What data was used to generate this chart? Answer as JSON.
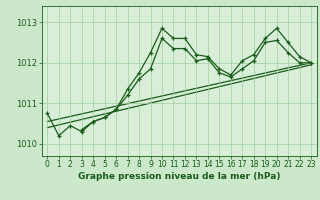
{
  "xlabel": "Graphe pression niveau de la mer (hPa)",
  "background_color": "#cbe8cb",
  "plot_bg_color": "#d8eed8",
  "grid_color": "#9ecf9e",
  "line_color": "#1a5c1a",
  "xlim": [
    -0.5,
    23.5
  ],
  "ylim": [
    1009.7,
    1013.4
  ],
  "xticks": [
    0,
    1,
    2,
    3,
    4,
    5,
    6,
    7,
    8,
    9,
    10,
    11,
    12,
    13,
    14,
    15,
    16,
    17,
    18,
    19,
    20,
    21,
    22,
    23
  ],
  "yticks": [
    1010,
    1011,
    1012,
    1013
  ],
  "series1_x": [
    0,
    1,
    2,
    3,
    4,
    5,
    6,
    7,
    8,
    9,
    10,
    11,
    12,
    13,
    14,
    15,
    16,
    17,
    18,
    19,
    20,
    21,
    22,
    23
  ],
  "series1_y": [
    1010.75,
    1010.2,
    1010.45,
    1010.3,
    1010.55,
    1010.65,
    1010.85,
    1011.35,
    1011.75,
    1012.25,
    1012.85,
    1012.6,
    1012.6,
    1012.2,
    1012.15,
    1011.85,
    1011.7,
    1012.05,
    1012.2,
    1012.6,
    1012.85,
    1012.5,
    1012.15,
    1012.0
  ],
  "series2_x": [
    3,
    4,
    5,
    6,
    7,
    8,
    9,
    10,
    11,
    12,
    13,
    14,
    15,
    16,
    17,
    18,
    19,
    20,
    21,
    22,
    23
  ],
  "series2_y": [
    1010.35,
    1010.55,
    1010.65,
    1010.85,
    1011.2,
    1011.6,
    1011.85,
    1012.6,
    1012.35,
    1012.35,
    1012.05,
    1012.1,
    1011.75,
    1011.65,
    1011.85,
    1012.05,
    1012.5,
    1012.55,
    1012.25,
    1012.0,
    1012.0
  ],
  "trend1_x": [
    0,
    23
  ],
  "trend1_y": [
    1010.55,
    1012.0
  ],
  "trend2_x": [
    0,
    23
  ],
  "trend2_y": [
    1010.4,
    1011.95
  ]
}
